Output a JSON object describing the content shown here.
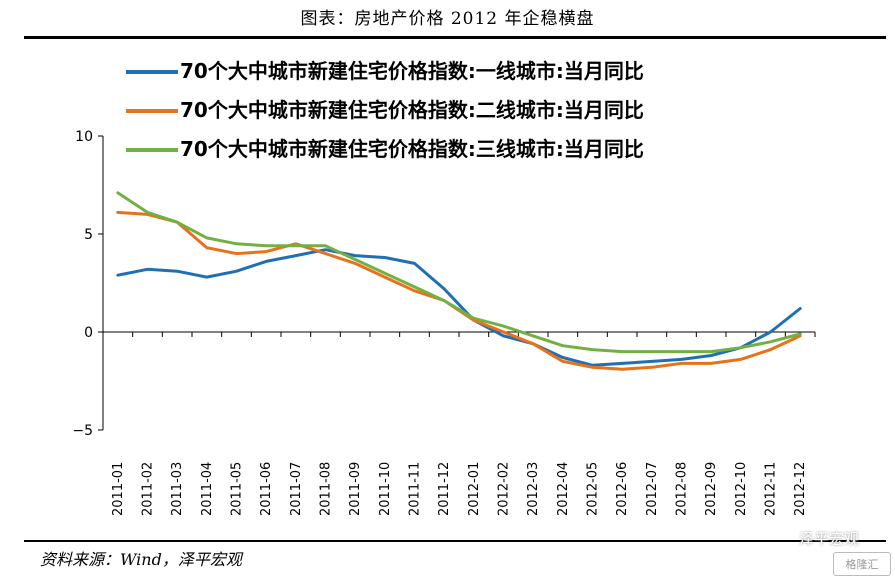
{
  "header": {
    "title": "图表：房地产价格 2012 年企稳横盘"
  },
  "footer": {
    "source": "资料来源：Wind，泽平宏观"
  },
  "watermark": {
    "text": "泽平宏观",
    "logo": "格隆汇"
  },
  "colors": {
    "series1": "#1f6fb5",
    "series2": "#e8711a",
    "series3": "#72b043"
  },
  "chart_data": {
    "type": "line",
    "categories": [
      "2011-01",
      "2011-02",
      "2011-03",
      "2011-04",
      "2011-05",
      "2011-06",
      "2011-07",
      "2011-08",
      "2011-09",
      "2011-10",
      "2011-11",
      "2011-12",
      "2012-01",
      "2012-02",
      "2012-03",
      "2012-04",
      "2012-05",
      "2012-06",
      "2012-07",
      "2012-08",
      "2012-09",
      "2012-10",
      "2012-11",
      "2012-12"
    ],
    "ylim": [
      -5,
      10
    ],
    "yticks": [
      10,
      5,
      0,
      -5
    ],
    "ytick_labels": [
      "10",
      "5",
      "0",
      "−5"
    ],
    "legend_position": "top",
    "series": [
      {
        "name": "70个大中城市新建住宅价格指数:一线城市:当月同比",
        "values": [
          2.9,
          3.2,
          3.1,
          2.8,
          3.1,
          3.6,
          3.9,
          4.2,
          3.9,
          3.8,
          3.5,
          2.2,
          0.6,
          -0.2,
          -0.6,
          -1.3,
          -1.7,
          -1.6,
          -1.5,
          -1.4,
          -1.2,
          -0.8,
          0.0,
          1.2
        ]
      },
      {
        "name": "70个大中城市新建住宅价格指数:二线城市:当月同比",
        "values": [
          6.1,
          6.0,
          5.6,
          4.3,
          4.0,
          4.1,
          4.5,
          4.0,
          3.5,
          2.8,
          2.1,
          1.6,
          0.6,
          0.0,
          -0.6,
          -1.5,
          -1.8,
          -1.9,
          -1.8,
          -1.6,
          -1.6,
          -1.4,
          -0.9,
          -0.2
        ]
      },
      {
        "name": "70个大中城市新建住宅价格指数:三线城市:当月同比",
        "values": [
          7.1,
          6.1,
          5.6,
          4.8,
          4.5,
          4.4,
          4.4,
          4.4,
          3.7,
          3.0,
          2.3,
          1.6,
          0.7,
          0.3,
          -0.2,
          -0.7,
          -0.9,
          -1.0,
          -1.0,
          -1.0,
          -1.0,
          -0.8,
          -0.5,
          -0.1
        ]
      }
    ]
  }
}
